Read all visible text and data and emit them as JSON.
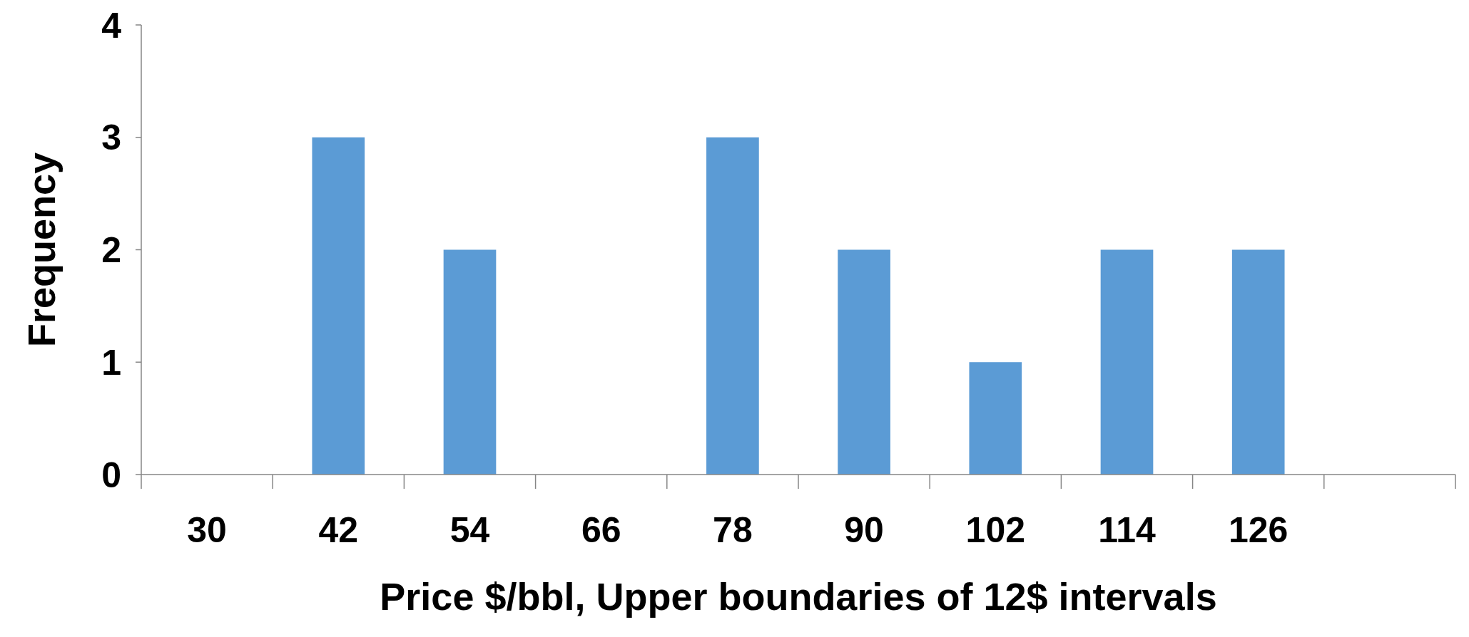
{
  "chart_data": {
    "type": "bar",
    "xlabel": "Price $/bbl, Upper boundaries of 12$ intervals",
    "ylabel": "Frequency",
    "categories": [
      "30",
      "42",
      "54",
      "66",
      "78",
      "90",
      "102",
      "114",
      "126",
      null
    ],
    "values": [
      0,
      3,
      2,
      0,
      3,
      2,
      1,
      2,
      2,
      0
    ],
    "color": "#5b9bd5",
    "ylim": [
      0,
      4
    ],
    "yticks": [
      0,
      1,
      2,
      3,
      4
    ],
    "grid": false
  }
}
